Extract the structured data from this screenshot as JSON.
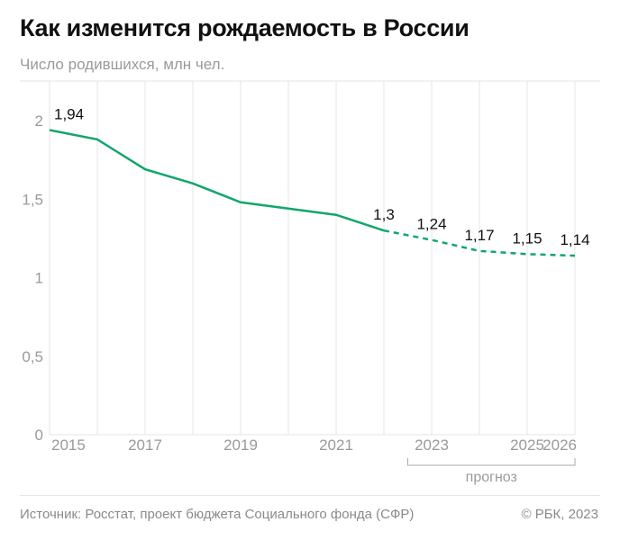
{
  "title": "Как изменится рождаемость в России",
  "subtitle": "Число родившихся, млн чел.",
  "source": "Источник: Росстат, проект бюджета Социального фонда (СФР)",
  "copyright": "© РБК, 2023",
  "chart_data": {
    "type": "line",
    "title": "Как изменится рождаемость в России",
    "ylabel": "Число родившихся, млн чел.",
    "x": [
      2015,
      2016,
      2017,
      2018,
      2019,
      2020,
      2021,
      2022,
      2023,
      2024,
      2025,
      2026
    ],
    "values": [
      1.94,
      1.88,
      1.69,
      1.6,
      1.48,
      1.44,
      1.4,
      1.3,
      1.24,
      1.17,
      1.15,
      1.14
    ],
    "forecast_from": 2022,
    "forecast_label": "прогноз",
    "ylim": [
      0,
      2
    ],
    "yticks": [
      {
        "v": 0,
        "label": "0"
      },
      {
        "v": 0.5,
        "label": "0,5"
      },
      {
        "v": 1,
        "label": "1"
      },
      {
        "v": 1.5,
        "label": "1,5"
      },
      {
        "v": 2,
        "label": "2"
      }
    ],
    "xticks": [
      {
        "v": 2015,
        "label": "2015"
      },
      {
        "v": 2017,
        "label": "2017"
      },
      {
        "v": 2019,
        "label": "2019"
      },
      {
        "v": 2021,
        "label": "2021"
      },
      {
        "v": 2023,
        "label": "2023"
      },
      {
        "v": 2025,
        "label": "2025"
      },
      {
        "v": 2026,
        "label": "2026"
      }
    ],
    "data_labels": [
      {
        "x": 2015,
        "label": "1,94"
      },
      {
        "x": 2022,
        "label": "1,3"
      },
      {
        "x": 2023,
        "label": "1,24"
      },
      {
        "x": 2024,
        "label": "1,17"
      },
      {
        "x": 2025,
        "label": "1,15"
      },
      {
        "x": 2026,
        "label": "1,14"
      }
    ],
    "grid": "vertical",
    "colors": {
      "line": "#12a66b",
      "grid": "#e6e6e6",
      "axis_text": "#9a9a9a"
    }
  }
}
